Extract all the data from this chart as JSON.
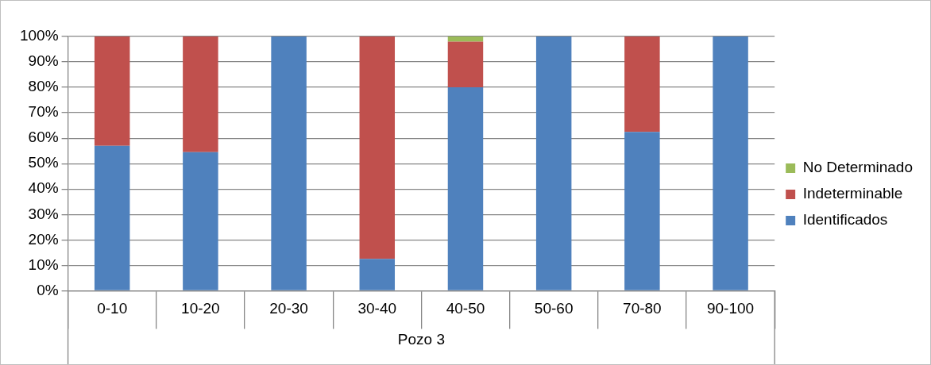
{
  "chart_data": {
    "type": "bar",
    "stacked": true,
    "categories": [
      "0-10",
      "10-20",
      "20-30",
      "30-40",
      "40-50",
      "50-60",
      "70-80",
      "90-100"
    ],
    "xlabel": "Pozo 3",
    "series": [
      {
        "name": "Identificados",
        "color": "#4f81bd",
        "values": [
          57,
          54.5,
          100,
          12.5,
          80,
          100,
          62.5,
          100
        ]
      },
      {
        "name": "Indeterminable",
        "color": "#c0504d",
        "values": [
          43,
          45.5,
          0,
          87.5,
          18,
          0,
          37.5,
          0
        ]
      },
      {
        "name": "No Determinado",
        "color": "#9bbb59",
        "values": [
          0,
          0,
          0,
          0,
          2,
          0,
          0,
          0
        ]
      }
    ],
    "ylim": [
      0,
      100
    ],
    "yticks": [
      {
        "value": 0,
        "label": "0%"
      },
      {
        "value": 10,
        "label": "10%"
      },
      {
        "value": 20,
        "label": "20%"
      },
      {
        "value": 30,
        "label": "30%"
      },
      {
        "value": 40,
        "label": "40%"
      },
      {
        "value": 50,
        "label": "50%"
      },
      {
        "value": 60,
        "label": "60%"
      },
      {
        "value": 70,
        "label": "70%"
      },
      {
        "value": 80,
        "label": "80%"
      },
      {
        "value": 90,
        "label": "90%"
      },
      {
        "value": 100,
        "label": "100%"
      }
    ],
    "grid": "y",
    "legend": "right"
  }
}
